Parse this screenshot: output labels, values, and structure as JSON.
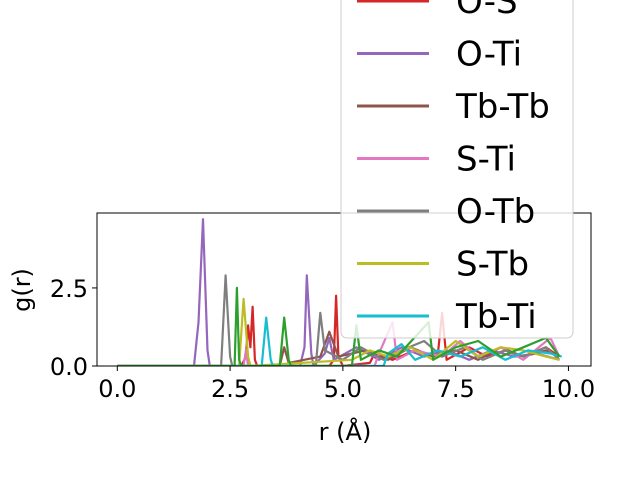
{
  "chart_data": {
    "type": "line",
    "xlabel": "r (Å)",
    "ylabel": "g(r)",
    "xlim": [
      -0.45,
      10.5
    ],
    "ylim": [
      0,
      4.9
    ],
    "xticks": [
      0.0,
      2.5,
      5.0,
      7.5,
      10.0
    ],
    "xtick_labels": [
      "0.0",
      "2.5",
      "5.0",
      "7.5",
      "10.0"
    ],
    "yticks": [
      0.0,
      2.5
    ],
    "ytick_labels": [
      "0.0",
      "2.5"
    ],
    "grid": false,
    "legend_placement": "top-right",
    "series": [
      {
        "name": "O-S",
        "color": "#d62728",
        "points": [
          [
            0,
            0
          ],
          [
            2.75,
            0
          ],
          [
            2.85,
            0.3
          ],
          [
            2.9,
            1.3
          ],
          [
            2.95,
            0.6
          ],
          [
            3.0,
            1.9
          ],
          [
            3.05,
            0.2
          ],
          [
            3.1,
            0
          ],
          [
            4.7,
            0
          ],
          [
            4.8,
            0.2
          ],
          [
            4.85,
            2.25
          ],
          [
            4.9,
            0.3
          ],
          [
            5.0,
            0
          ],
          [
            5.6,
            0.1
          ],
          [
            5.7,
            0.4
          ],
          [
            6.1,
            0.2
          ],
          [
            6.6,
            0.5
          ],
          [
            7.1,
            0.3
          ],
          [
            7.2,
            1.7
          ],
          [
            7.3,
            0.2
          ],
          [
            7.8,
            0.6
          ],
          [
            8.2,
            0.3
          ],
          [
            8.6,
            0.5
          ],
          [
            9.0,
            0.3
          ],
          [
            9.5,
            0.6
          ],
          [
            9.8,
            0.3
          ]
        ]
      },
      {
        "name": "O-Ti",
        "color": "#9467bd",
        "points": [
          [
            0,
            0
          ],
          [
            1.7,
            0
          ],
          [
            1.8,
            1.4
          ],
          [
            1.9,
            4.7
          ],
          [
            2.0,
            0.5
          ],
          [
            2.05,
            0
          ],
          [
            4.05,
            0
          ],
          [
            4.15,
            0.6
          ],
          [
            4.2,
            2.9
          ],
          [
            4.3,
            0.4
          ],
          [
            4.35,
            0
          ],
          [
            4.6,
            0.4
          ],
          [
            4.7,
            0.9
          ],
          [
            4.8,
            0.2
          ],
          [
            5.3,
            0.6
          ],
          [
            5.8,
            0.2
          ],
          [
            6.3,
            0.6
          ],
          [
            6.8,
            0.3
          ],
          [
            7.3,
            0.5
          ],
          [
            7.8,
            0.2
          ],
          [
            8.3,
            0.5
          ],
          [
            8.8,
            0.3
          ],
          [
            9.3,
            0.4
          ],
          [
            9.8,
            0.2
          ]
        ]
      },
      {
        "name": "Tb-Tb",
        "color": "#8c564b",
        "points": [
          [
            0,
            0
          ],
          [
            3.6,
            0
          ],
          [
            3.7,
            0.6
          ],
          [
            3.8,
            0.1
          ],
          [
            4.5,
            0.3
          ],
          [
            4.7,
            1.1
          ],
          [
            4.9,
            0.3
          ],
          [
            5.5,
            0.5
          ],
          [
            6.0,
            0.2
          ],
          [
            6.5,
            0.6
          ],
          [
            7.0,
            0.3
          ],
          [
            7.5,
            0.5
          ],
          [
            8.0,
            0.2
          ],
          [
            8.5,
            0.6
          ],
          [
            9.0,
            0.3
          ],
          [
            9.5,
            0.5
          ],
          [
            9.8,
            0.3
          ]
        ]
      },
      {
        "name": "S-Ti",
        "color": "#e377c2",
        "points": [
          [
            0,
            0
          ],
          [
            2.8,
            0
          ],
          [
            2.85,
            0.5
          ],
          [
            2.9,
            0
          ],
          [
            5.7,
            0
          ],
          [
            5.8,
            0.4
          ],
          [
            6.1,
            1.4
          ],
          [
            6.2,
            0.2
          ],
          [
            6.6,
            0.5
          ],
          [
            7.2,
            0.3
          ],
          [
            7.6,
            0.8
          ],
          [
            8.0,
            0.3
          ],
          [
            8.5,
            0.6
          ],
          [
            9.0,
            0.2
          ],
          [
            9.6,
            0.9
          ],
          [
            9.8,
            0.3
          ]
        ]
      },
      {
        "name": "O-Tb",
        "color": "#7f7f7f",
        "points": [
          [
            0,
            0
          ],
          [
            2.3,
            0
          ],
          [
            2.4,
            2.9
          ],
          [
            2.5,
            0.3
          ],
          [
            2.55,
            0
          ],
          [
            4.4,
            0
          ],
          [
            4.5,
            1.7
          ],
          [
            4.6,
            0.5
          ],
          [
            5.0,
            0.2
          ],
          [
            5.4,
            0.6
          ],
          [
            5.9,
            0.2
          ],
          [
            6.3,
            0.5
          ],
          [
            6.8,
            0.8
          ],
          [
            7.2,
            0.3
          ],
          [
            7.7,
            0.6
          ],
          [
            8.1,
            0.2
          ],
          [
            8.6,
            0.5
          ],
          [
            9.0,
            0.3
          ],
          [
            9.5,
            0.6
          ],
          [
            9.8,
            0.2
          ]
        ]
      },
      {
        "name": "S-Tb",
        "color": "#bcbd22",
        "points": [
          [
            0,
            0
          ],
          [
            2.7,
            0
          ],
          [
            2.8,
            2.15
          ],
          [
            2.9,
            0.3
          ],
          [
            2.95,
            0
          ],
          [
            5.2,
            0.2
          ],
          [
            5.6,
            0.5
          ],
          [
            6.0,
            0.3
          ],
          [
            6.5,
            0.6
          ],
          [
            7.0,
            0.2
          ],
          [
            7.5,
            0.8
          ],
          [
            8.0,
            0.3
          ],
          [
            8.5,
            0.6
          ],
          [
            9.0,
            0.5
          ],
          [
            9.5,
            0.3
          ],
          [
            9.8,
            0.2
          ]
        ]
      },
      {
        "name": "Tb-Ti",
        "color": "#17becf",
        "points": [
          [
            0,
            0
          ],
          [
            3.2,
            0
          ],
          [
            3.3,
            1.55
          ],
          [
            3.4,
            0.2
          ],
          [
            3.45,
            0
          ],
          [
            5.9,
            0
          ],
          [
            6.0,
            0.4
          ],
          [
            6.3,
            0.7
          ],
          [
            6.6,
            0.2
          ],
          [
            7.1,
            0.5
          ],
          [
            7.6,
            0.3
          ],
          [
            8.1,
            0.6
          ],
          [
            8.6,
            0.2
          ],
          [
            9.1,
            0.5
          ],
          [
            9.6,
            0.4
          ],
          [
            9.85,
            0.3
          ]
        ]
      },
      {
        "name": "",
        "color": "#2ca02c",
        "points": [
          [
            0,
            0
          ],
          [
            2.6,
            0
          ],
          [
            2.65,
            2.5
          ],
          [
            2.7,
            0.2
          ],
          [
            2.75,
            0
          ],
          [
            3.6,
            0
          ],
          [
            3.7,
            1.55
          ],
          [
            3.8,
            0.2
          ],
          [
            3.85,
            0
          ],
          [
            5.2,
            0
          ],
          [
            5.3,
            1.3
          ],
          [
            5.4,
            0.2
          ],
          [
            5.8,
            0.5
          ],
          [
            6.2,
            0.3
          ],
          [
            6.9,
            1.4
          ],
          [
            7.0,
            0.2
          ],
          [
            7.5,
            0.6
          ],
          [
            8.0,
            0.8
          ],
          [
            8.5,
            0.3
          ],
          [
            9.0,
            0.6
          ],
          [
            9.5,
            0.9
          ],
          [
            9.8,
            0.3
          ]
        ]
      }
    ],
    "legend": [
      "O-S",
      "O-Ti",
      "Tb-Tb",
      "S-Ti",
      "O-Tb",
      "S-Tb",
      "Tb-Ti"
    ]
  }
}
